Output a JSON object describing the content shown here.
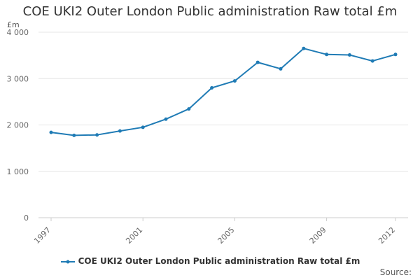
{
  "chart_data": {
    "type": "line",
    "title": "COE UKI2 Outer London Public administration Raw total £m",
    "unit_label": "£m",
    "x": [
      1997,
      1998,
      1999,
      2000,
      2001,
      2002,
      2003,
      2004,
      2005,
      2006,
      2007,
      2008,
      2009,
      2010,
      2011,
      2012
    ],
    "series": [
      {
        "name": "COE UKI2 Outer London Public administration Raw total £m",
        "values": [
          1840,
          1775,
          1785,
          1870,
          1950,
          2125,
          2345,
          2800,
          2950,
          3350,
          3210,
          3650,
          3520,
          3510,
          3380,
          3520
        ],
        "color": "#1f7bb5"
      }
    ],
    "y_ticks": [
      {
        "value": 0,
        "label": "0"
      },
      {
        "value": 1000,
        "label": "1 000"
      },
      {
        "value": 2000,
        "label": "2 000"
      },
      {
        "value": 3000,
        "label": "3 000"
      },
      {
        "value": 4000,
        "label": "4 000"
      }
    ],
    "x_tick_labels": [
      {
        "value": 1997,
        "label": "1997"
      },
      {
        "value": 2001,
        "label": "2001"
      },
      {
        "value": 2005,
        "label": "2005"
      },
      {
        "value": 2009,
        "label": "2009"
      },
      {
        "value": 2012,
        "label": "2012"
      }
    ],
    "ylim": [
      0,
      4000
    ],
    "xlim": [
      1997,
      2012
    ],
    "grid": "horizontal",
    "legend_position": "bottom",
    "source_label": "Source:"
  }
}
